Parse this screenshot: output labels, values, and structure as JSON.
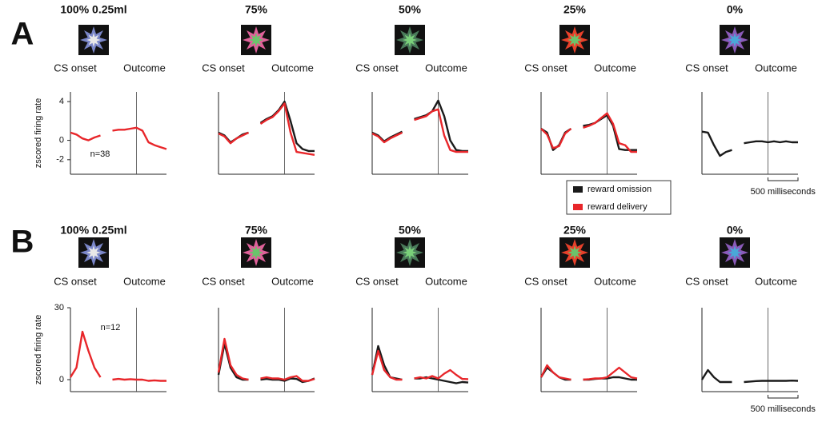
{
  "chart_data": [
    {
      "type": "line",
      "panel_label": "A",
      "title": "100% 0.25ml",
      "event_labels": [
        "CS onset",
        "Outcome"
      ],
      "y_label": "zscored firing rate",
      "annotation": "n=38",
      "x": [
        0,
        100,
        200,
        300,
        400,
        500,
        600,
        700,
        800,
        900,
        1000,
        1100,
        1200,
        1300,
        1400,
        1500,
        1600
      ],
      "xlim": [
        0,
        1600
      ],
      "vline": 1100,
      "ylim": [
        -3.5,
        5
      ],
      "yticks": [
        4,
        0,
        -2
      ],
      "series": [
        {
          "color": "#e8262a",
          "values": [
            0.8,
            0.6,
            0.2,
            0.0,
            0.3,
            0.5,
            null,
            1.0,
            1.1,
            1.1,
            1.2,
            1.3,
            1.0,
            -0.2,
            -0.5,
            -0.7,
            -0.9
          ]
        }
      ]
    },
    {
      "type": "line",
      "title": "75%",
      "event_labels": [
        "CS onset",
        "Outcome"
      ],
      "x": [
        0,
        100,
        200,
        300,
        400,
        500,
        600,
        700,
        800,
        900,
        1000,
        1100,
        1200,
        1300,
        1400,
        1500,
        1600
      ],
      "xlim": [
        0,
        1600
      ],
      "vline": 1100,
      "ylim": [
        -3.5,
        5
      ],
      "series": [
        {
          "color": "#1a1a1a",
          "values": [
            0.8,
            0.5,
            -0.2,
            0.2,
            0.6,
            0.8,
            null,
            1.8,
            2.2,
            2.5,
            3.1,
            4.0,
            2.0,
            -0.3,
            -0.9,
            -1.1,
            -1.1
          ]
        },
        {
          "color": "#e8262a",
          "values": [
            0.7,
            0.4,
            -0.3,
            0.2,
            0.5,
            0.8,
            null,
            1.7,
            2.1,
            2.4,
            3.0,
            3.8,
            0.8,
            -1.2,
            -1.3,
            -1.4,
            -1.5
          ]
        }
      ]
    },
    {
      "type": "line",
      "title": "50%",
      "event_labels": [
        "CS onset",
        "Outcome"
      ],
      "x": [
        0,
        100,
        200,
        300,
        400,
        500,
        600,
        700,
        800,
        900,
        1000,
        1100,
        1200,
        1300,
        1400,
        1500,
        1600
      ],
      "xlim": [
        0,
        1600
      ],
      "vline": 1100,
      "ylim": [
        -3.5,
        5
      ],
      "series": [
        {
          "color": "#1a1a1a",
          "values": [
            0.8,
            0.5,
            -0.1,
            0.3,
            0.6,
            0.9,
            null,
            2.2,
            2.4,
            2.6,
            3.0,
            4.1,
            2.5,
            0.0,
            -1.0,
            -1.1,
            -1.1
          ]
        },
        {
          "color": "#e8262a",
          "values": [
            0.7,
            0.4,
            -0.2,
            0.2,
            0.5,
            0.8,
            null,
            2.1,
            2.3,
            2.5,
            3.0,
            3.2,
            0.5,
            -1.0,
            -1.2,
            -1.2,
            -1.2
          ]
        }
      ]
    },
    {
      "type": "line",
      "title": "25%",
      "event_labels": [
        "CS onset",
        "Outcome"
      ],
      "x": [
        0,
        100,
        200,
        300,
        400,
        500,
        600,
        700,
        800,
        900,
        1000,
        1100,
        1200,
        1300,
        1400,
        1500,
        1600
      ],
      "xlim": [
        0,
        1600
      ],
      "vline": 1100,
      "ylim": [
        -3.5,
        5
      ],
      "series": [
        {
          "name": "reward omission",
          "color": "#1a1a1a",
          "values": [
            1.2,
            0.8,
            -1.0,
            -0.5,
            0.8,
            1.2,
            null,
            1.5,
            1.6,
            1.8,
            2.2,
            2.6,
            1.5,
            -0.9,
            -1.0,
            -1.0,
            -1.0
          ]
        },
        {
          "name": "reward delivery",
          "color": "#e8262a",
          "values": [
            1.2,
            0.6,
            -0.8,
            -0.6,
            0.7,
            1.2,
            null,
            1.3,
            1.5,
            1.8,
            2.3,
            2.8,
            1.7,
            -0.3,
            -0.5,
            -1.2,
            -1.2
          ]
        }
      ]
    },
    {
      "type": "line",
      "title": "0%",
      "event_labels": [
        "CS onset",
        "Outcome"
      ],
      "scale_bar": {
        "value": 500,
        "label": "500 milliseconds"
      },
      "x": [
        0,
        100,
        200,
        300,
        400,
        500,
        600,
        700,
        800,
        900,
        1000,
        1100,
        1200,
        1300,
        1400,
        1500,
        1600
      ],
      "xlim": [
        0,
        1600
      ],
      "vline": 1100,
      "ylim": [
        -3.5,
        5
      ],
      "series": [
        {
          "color": "#1a1a1a",
          "values": [
            0.9,
            0.8,
            -0.5,
            -1.6,
            -1.2,
            -1.0,
            null,
            -0.3,
            -0.2,
            -0.1,
            -0.1,
            -0.2,
            -0.1,
            -0.2,
            -0.1,
            -0.2,
            -0.2
          ]
        }
      ]
    },
    {
      "type": "line",
      "panel_label": "B",
      "title": "100% 0.25ml",
      "event_labels": [
        "CS onset",
        "Outcome"
      ],
      "y_label": "zscored firing rate",
      "annotation": "n=12",
      "x": [
        0,
        100,
        200,
        300,
        400,
        500,
        600,
        700,
        800,
        900,
        1000,
        1100,
        1200,
        1300,
        1400,
        1500,
        1600
      ],
      "xlim": [
        0,
        1600
      ],
      "vline": 1100,
      "ylim": [
        -5,
        30
      ],
      "yticks": [
        30,
        0
      ],
      "series": [
        {
          "color": "#e8262a",
          "values": [
            1,
            5,
            20,
            12,
            5,
            1,
            null,
            0,
            0.3,
            0,
            0.2,
            0,
            0,
            -0.5,
            -0.3,
            -0.5,
            -0.5
          ]
        }
      ]
    },
    {
      "type": "line",
      "title": "75%",
      "event_labels": [
        "CS onset",
        "Outcome"
      ],
      "x": [
        0,
        100,
        200,
        300,
        400,
        500,
        600,
        700,
        800,
        900,
        1000,
        1100,
        1200,
        1300,
        1400,
        1500,
        1600
      ],
      "xlim": [
        0,
        1600
      ],
      "vline": 1100,
      "ylim": [
        -5,
        30
      ],
      "series": [
        {
          "color": "#1a1a1a",
          "values": [
            2,
            15,
            5,
            1,
            0,
            0,
            null,
            0,
            0.3,
            0,
            0,
            -0.5,
            0.5,
            0.3,
            -1,
            -0.5,
            0.5
          ]
        },
        {
          "color": "#e8262a",
          "values": [
            3,
            17,
            6,
            2,
            0.5,
            0,
            null,
            0.5,
            1.0,
            0.5,
            0.5,
            0,
            1.0,
            1.5,
            -0.5,
            -0.5,
            0.3
          ]
        }
      ]
    },
    {
      "type": "line",
      "title": "50%",
      "event_labels": [
        "CS onset",
        "Outcome"
      ],
      "x": [
        0,
        100,
        200,
        300,
        400,
        500,
        600,
        700,
        800,
        900,
        1000,
        1100,
        1200,
        1300,
        1400,
        1500,
        1600
      ],
      "xlim": [
        0,
        1600
      ],
      "vline": 1100,
      "ylim": [
        -5,
        30
      ],
      "series": [
        {
          "color": "#1a1a1a",
          "values": [
            2,
            14,
            6,
            1,
            0.5,
            0,
            null,
            0.5,
            0.5,
            1,
            0.5,
            0,
            -0.5,
            -1,
            -1.5,
            -1,
            -1.2
          ]
        },
        {
          "color": "#e8262a",
          "values": [
            2,
            12,
            4,
            1,
            0,
            0,
            null,
            0.5,
            1.0,
            0.5,
            1.5,
            0.5,
            2.5,
            4.0,
            2.0,
            0.3,
            0.2
          ]
        }
      ]
    },
    {
      "type": "line",
      "title": "25%",
      "event_labels": [
        "CS onset",
        "Outcome"
      ],
      "x": [
        0,
        100,
        200,
        300,
        400,
        500,
        600,
        700,
        800,
        900,
        1000,
        1100,
        1200,
        1300,
        1400,
        1500,
        1600
      ],
      "xlim": [
        0,
        1600
      ],
      "vline": 1100,
      "ylim": [
        -5,
        30
      ],
      "series": [
        {
          "color": "#1a1a1a",
          "values": [
            1,
            5,
            3,
            1,
            0,
            0,
            null,
            0,
            0,
            0.3,
            0.5,
            0.5,
            1.0,
            1.0,
            0.5,
            0,
            0
          ]
        },
        {
          "color": "#e8262a",
          "values": [
            1,
            6,
            3,
            1,
            0.5,
            0,
            null,
            0,
            0.2,
            0.5,
            0.5,
            1.0,
            3.0,
            5.0,
            3.0,
            1.0,
            0.5
          ]
        }
      ]
    },
    {
      "type": "line",
      "title": "0%",
      "event_labels": [
        "CS onset",
        "Outcome"
      ],
      "scale_bar": {
        "value": 500,
        "label": "500 milliseconds"
      },
      "x": [
        0,
        100,
        200,
        300,
        400,
        500,
        600,
        700,
        800,
        900,
        1000,
        1100,
        1200,
        1300,
        1400,
        1500,
        1600
      ],
      "xlim": [
        0,
        1600
      ],
      "vline": 1100,
      "ylim": [
        -5,
        30
      ],
      "series": [
        {
          "color": "#1a1a1a",
          "values": [
            0,
            4,
            1,
            -1,
            -1,
            -1,
            null,
            -1,
            -0.8,
            -0.6,
            -0.5,
            -0.5,
            -0.5,
            -0.5,
            -0.5,
            -0.4,
            -0.5
          ]
        }
      ]
    }
  ]
}
